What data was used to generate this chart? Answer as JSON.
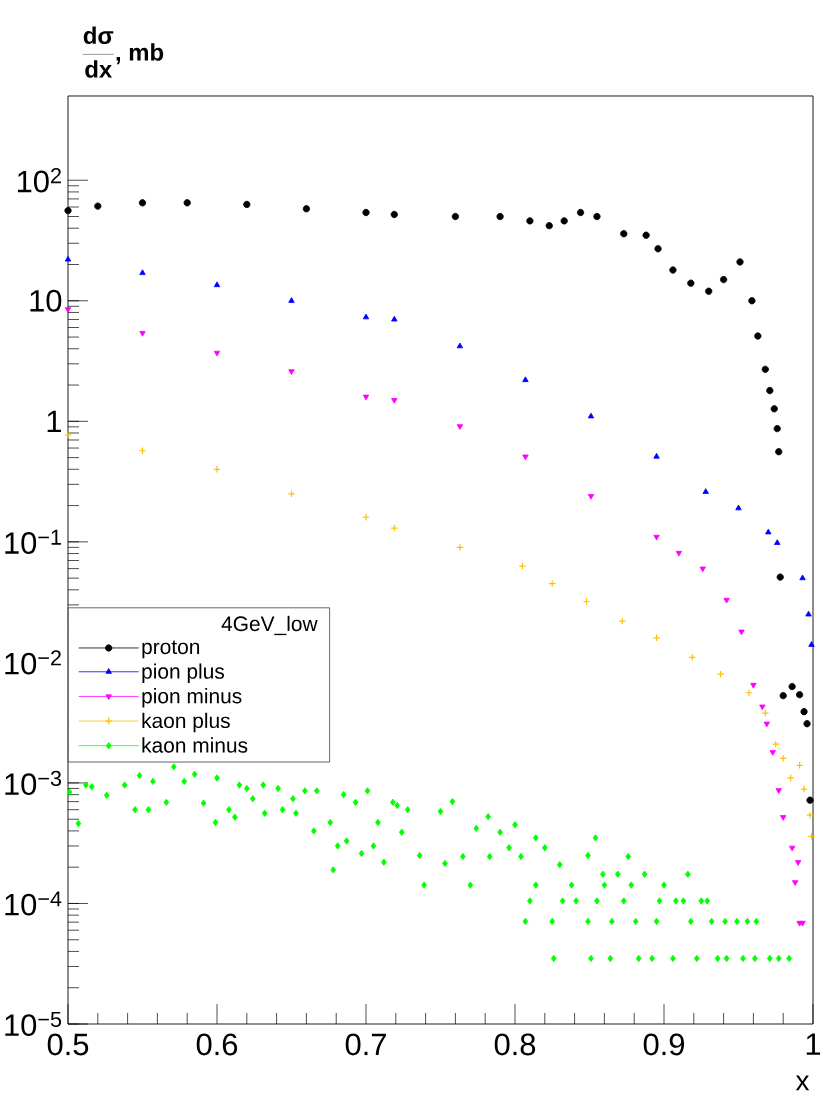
{
  "chart_data": {
    "type": "scatter",
    "ylabel": "\\frac{\\textbf{dσ}}{\\textbf{dx}}\\textbf{, mb}",
    "xlabel": "x",
    "legend_title": "4GeV_low",
    "legend": "left",
    "log": "y",
    "xlim": [
      0.5,
      1
    ],
    "xticks": [
      0.5,
      0.6,
      0.7,
      0.8,
      0.9,
      1
    ],
    "ylim": [
      1e-05,
      500
    ],
    "yticks": [
      {
        "value": 1e-05,
        "label": "10$^{−5}$"
      },
      {
        "value": 0.0001,
        "label": "10$^{−4}$"
      },
      {
        "value": 0.001,
        "label": "10$^{−3}$"
      },
      {
        "value": 0.01,
        "label": "10$^{−2}$"
      },
      {
        "value": 0.1,
        "label": "10$^{−1}$"
      },
      1,
      10,
      {
        "value": 100,
        "label": "10$^{2}$"
      }
    ],
    "series": [
      {
        "name": "proton",
        "color": "#000000",
        "marker": "circle",
        "x": [
          0.5,
          0.52,
          0.55,
          0.58,
          0.62,
          0.66,
          0.7,
          0.719,
          0.76,
          0.79,
          0.81,
          0.823,
          0.833,
          0.844,
          0.855,
          0.873,
          0.888,
          0.896,
          0.906,
          0.918,
          0.93,
          0.94,
          0.951,
          0.959,
          0.963,
          0.968,
          0.971,
          0.974,
          0.976,
          0.977,
          0.978,
          0.98,
          0.986,
          0.991,
          0.994,
          0.996,
          0.998
        ],
        "values": [
          56,
          61,
          65,
          65,
          63,
          58,
          54,
          52,
          50,
          50,
          46,
          42,
          46,
          54,
          50,
          36,
          35,
          27,
          18,
          14,
          12,
          15,
          21,
          10,
          5.1,
          2.7,
          1.8,
          1.27,
          0.87,
          0.56,
          0.051,
          0.0053,
          0.0063,
          0.0054,
          0.0039,
          0.0031,
          0.00072
        ]
      },
      {
        "name": "pion plus",
        "color": "#0000ff",
        "marker": "triangle",
        "x": [
          0.5,
          0.55,
          0.6,
          0.65,
          0.7,
          0.719,
          0.763,
          0.807,
          0.851,
          0.895,
          0.928,
          0.95,
          0.97,
          0.976,
          0.993,
          0.997,
          0.999
        ],
        "values": [
          22,
          17,
          13.5,
          10,
          7.3,
          7,
          4.2,
          2.2,
          1.1,
          0.51,
          0.26,
          0.19,
          0.12,
          0.098,
          0.05,
          0.025,
          0.014
        ]
      },
      {
        "name": "pion minus",
        "color": "#ff00ff",
        "marker": "triangle_down",
        "x": [
          0.5,
          0.55,
          0.6,
          0.65,
          0.7,
          0.719,
          0.763,
          0.807,
          0.851,
          0.895,
          0.91,
          0.926,
          0.942,
          0.952,
          0.96,
          0.966,
          0.969,
          0.973,
          0.977,
          0.98,
          0.986,
          0.988,
          0.99,
          0.991,
          0.993
        ],
        "values": [
          8.5,
          5.4,
          3.7,
          2.6,
          1.6,
          1.5,
          0.91,
          0.51,
          0.24,
          0.11,
          0.081,
          0.06,
          0.033,
          0.018,
          0.0065,
          0.0043,
          0.0031,
          0.0018,
          0.00087,
          0.00052,
          0.00029,
          0.00015,
          0.00022,
          6.9e-05,
          6.9e-05
        ]
      },
      {
        "name": "kaon plus",
        "color": "#ffc000",
        "marker": "cross",
        "x": [
          0.5,
          0.55,
          0.6,
          0.65,
          0.7,
          0.719,
          0.763,
          0.805,
          0.825,
          0.848,
          0.872,
          0.895,
          0.919,
          0.938,
          0.957,
          0.968,
          0.975,
          0.98,
          0.985,
          0.991,
          0.994,
          0.998,
          0.999
        ],
        "values": [
          0.77,
          0.57,
          0.4,
          0.25,
          0.16,
          0.13,
          0.09,
          0.063,
          0.045,
          0.032,
          0.022,
          0.016,
          0.011,
          0.008,
          0.0056,
          0.0038,
          0.0021,
          0.0016,
          0.0011,
          0.0014,
          0.00089,
          0.00054,
          0.00036
        ]
      },
      {
        "name": "kaon minus",
        "color": "#00ff00",
        "marker": "diamond",
        "x": [
          0.501,
          0.507,
          0.512,
          0.516,
          0.526,
          0.538,
          0.545,
          0.548,
          0.554,
          0.557,
          0.566,
          0.571,
          0.578,
          0.585,
          0.591,
          0.599,
          0.6,
          0.608,
          0.612,
          0.615,
          0.62,
          0.624,
          0.631,
          0.632,
          0.641,
          0.644,
          0.651,
          0.653,
          0.659,
          0.665,
          0.667,
          0.676,
          0.678,
          0.681,
          0.685,
          0.687,
          0.693,
          0.697,
          0.701,
          0.705,
          0.708,
          0.712,
          0.718,
          0.721,
          0.724,
          0.728,
          0.736,
          0.739,
          0.75,
          0.753,
          0.758,
          0.765,
          0.77,
          0.774,
          0.782,
          0.783,
          0.79,
          0.796,
          0.8,
          0.804,
          0.807,
          0.81,
          0.814,
          0.814,
          0.82,
          0.825,
          0.826,
          0.83,
          0.832,
          0.838,
          0.841,
          0.849,
          0.849,
          0.851,
          0.854,
          0.855,
          0.859,
          0.86,
          0.864,
          0.865,
          0.869,
          0.873,
          0.876,
          0.878,
          0.881,
          0.883,
          0.887,
          0.892,
          0.895,
          0.897,
          0.9,
          0.906,
          0.908,
          0.913,
          0.916,
          0.918,
          0.922,
          0.925,
          0.929,
          0.932,
          0.936,
          0.941,
          0.942,
          0.949,
          0.953,
          0.956,
          0.961,
          0.962,
          0.971,
          0.977,
          0.984
        ],
        "values": [
          0.00084,
          0.00046,
          0.00096,
          0.00093,
          0.00079,
          0.00096,
          0.0006,
          0.00115,
          0.0006,
          0.00103,
          0.00069,
          0.00136,
          0.00103,
          0.00118,
          0.00068,
          0.00047,
          0.0011,
          0.0006,
          0.00052,
          0.00096,
          0.0009,
          0.00074,
          0.00096,
          0.00056,
          0.0009,
          0.0006,
          0.00074,
          0.00056,
          0.00086,
          0.0004,
          0.00086,
          0.00047,
          0.00019,
          0.0003,
          0.0008,
          0.00033,
          0.00069,
          0.00026,
          0.00086,
          0.0003,
          0.00047,
          0.00022,
          0.00069,
          0.00065,
          0.00039,
          0.0006,
          0.00025,
          0.000142,
          0.00058,
          0.000215,
          0.0007,
          0.000245,
          0.000142,
          0.00042,
          0.000525,
          0.000245,
          0.00039,
          0.00029,
          0.00045,
          0.000245,
          7.1e-05,
          0.000105,
          0.000142,
          0.00035,
          0.00029,
          7.1e-05,
          3.5e-05,
          0.00021,
          0.000105,
          0.000142,
          0.000105,
          0.00025,
          7.1e-05,
          3.5e-05,
          0.00035,
          0.000105,
          0.000175,
          0.000142,
          3.5e-05,
          7.1e-05,
          0.000175,
          0.000105,
          0.000245,
          0.000142,
          7.1e-05,
          3.5e-05,
          0.000175,
          3.5e-05,
          7.1e-05,
          0.000105,
          0.000142,
          3.5e-05,
          0.000105,
          0.000105,
          0.000175,
          7.1e-05,
          3.5e-05,
          0.000105,
          0.000105,
          7.1e-05,
          3.5e-05,
          7.1e-05,
          3.5e-05,
          7.1e-05,
          3.5e-05,
          7.1e-05,
          3.5e-05,
          7.1e-05,
          3.5e-05,
          3.5e-05,
          3.5e-05
        ]
      }
    ]
  }
}
